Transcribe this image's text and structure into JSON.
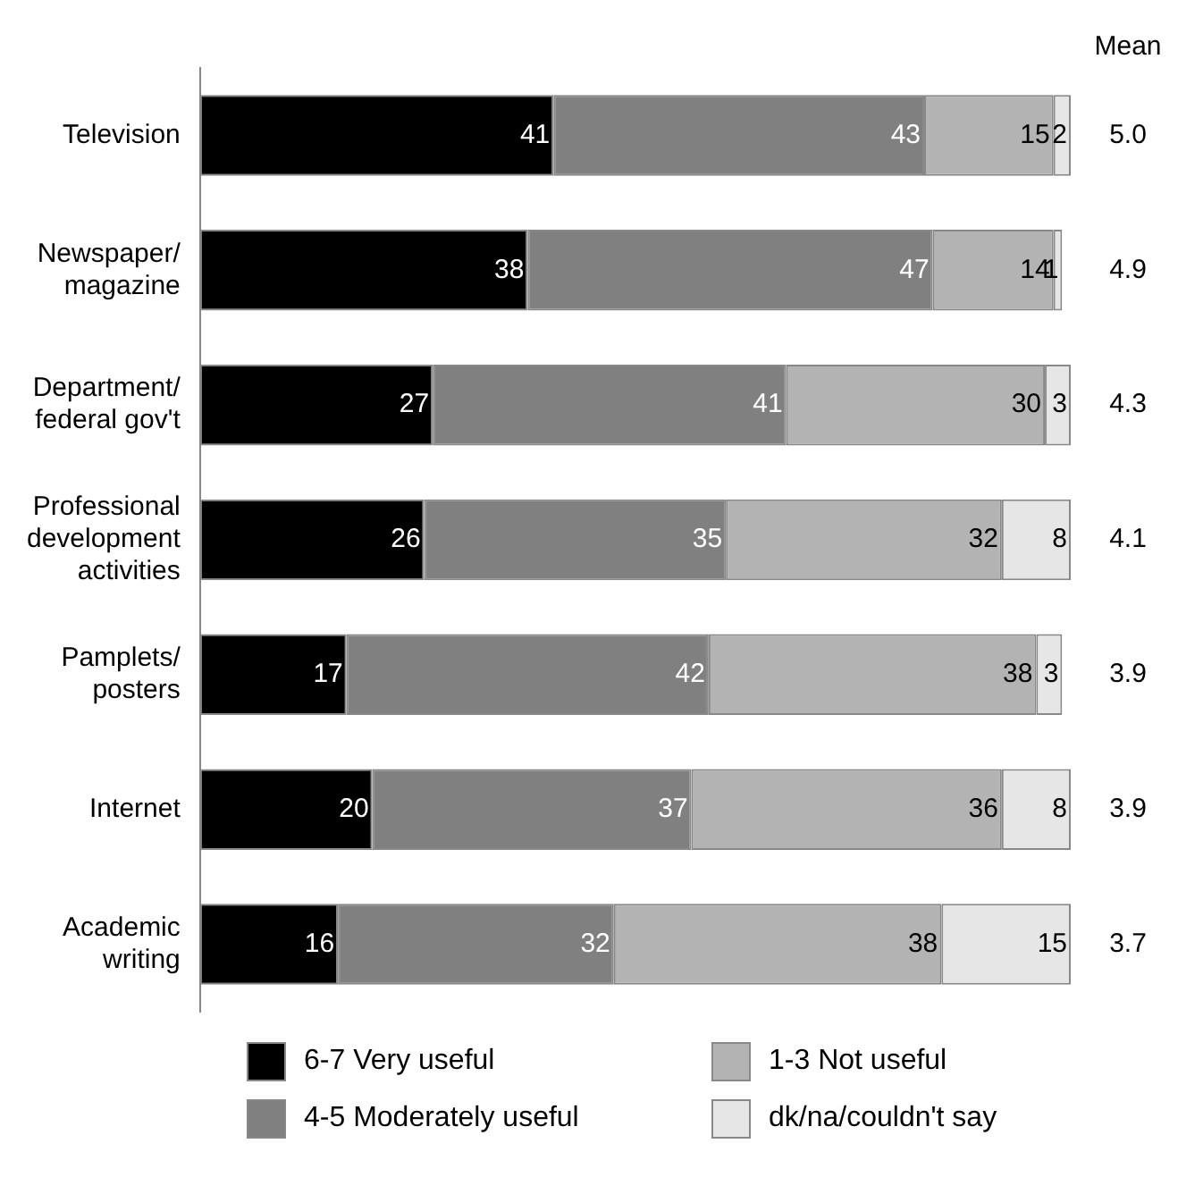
{
  "chart_data": {
    "type": "bar",
    "orientation": "horizontal",
    "stacked": true,
    "data_labels": true,
    "legend": "bottom",
    "categories": [
      "Television",
      "Newspaper/magazine",
      "Department/federal gov't",
      "Professional development activities",
      "Pamplets/posters",
      "Internet",
      "Academic writing"
    ],
    "series": [
      {
        "name": "6-7 Very useful",
        "color": "#000000",
        "values": [
          41,
          38,
          27,
          26,
          17,
          20,
          16
        ]
      },
      {
        "name": "4-5 Moderately useful",
        "color": "#808080",
        "values": [
          43,
          47,
          41,
          35,
          42,
          37,
          32
        ]
      },
      {
        "name": "1-3 Not useful",
        "color": "#b3b3b3",
        "values": [
          15,
          14,
          30,
          32,
          38,
          36,
          38
        ]
      },
      {
        "name": "dk/na/couldn't say",
        "color": "#e6e6e6",
        "values": [
          2,
          1,
          3,
          8,
          3,
          8,
          15
        ]
      }
    ],
    "annotations": [
      "Mean",
      "5.0",
      "4.9",
      "4.3",
      "4.1",
      "3.9",
      "3.9",
      "3.7"
    ]
  }
}
